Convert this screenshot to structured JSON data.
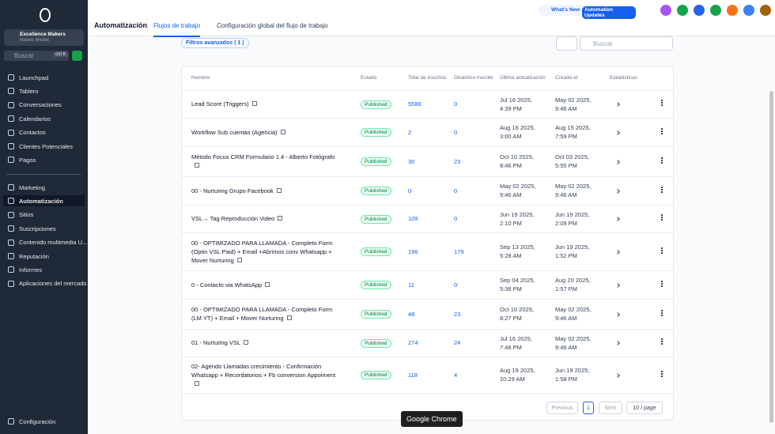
{
  "sidebar": {
    "company": "Excellence Makers",
    "location": "Madrid, Madrid",
    "search": "Buscar",
    "shortcut": "ctrl K",
    "nav": [
      "Launchpad",
      "Tablero",
      "Conversaciones",
      "Calendarios",
      "Contactos",
      "Clientes Potenciales",
      "Pagos"
    ],
    "nav2": [
      "Marketing",
      "Automatización",
      "Sitios",
      "Suscripciones",
      "Contenido multimedia U...",
      "Reputación",
      "Informes",
      "Aplicaciones del mercado"
    ],
    "settings": "Configuración"
  },
  "header": {
    "title": "Automatización",
    "tabs": [
      "Flujos de trabajo",
      "Configuración global del flujo de trabajo"
    ],
    "whats_new": "What's New",
    "updates": "Automation Updates"
  },
  "toolbar": {
    "filter": "Filtros avanzados ( 1 )",
    "search": "Buscar"
  },
  "table": {
    "columns": [
      "Nombre",
      "Estado",
      "Total de inscritos",
      "Dinámico inscrito",
      "Última actualización",
      "Creado el",
      "Estadísticas"
    ],
    "rows": [
      [
        "Lead Score (Triggers)",
        "Published",
        5588,
        0,
        "Jul 16 2025, 4:39 PM",
        "May 02 2025, 9:46 AM"
      ],
      [
        "Workflow Sub cuentas (Agencia)",
        "Published",
        2,
        0,
        "Aug 16 2025, 3:00 AM",
        "Aug 15 2025, 7:59 PM"
      ],
      [
        "Método Focus CRM Formulario 1.4 - Alberto Fotógrafo",
        "Published",
        30,
        23,
        "Oct 10 2025, 8:46 PM",
        "Oct 03 2025, 5:55 PM"
      ],
      [
        "00 - Nurturing Grupo Facebook",
        "Published",
        0,
        0,
        "May 02 2025, 9:46 AM",
        "May 02 2025, 9:46 AM"
      ],
      [
        "VSL→ Tag Reproducción Video",
        "Published",
        109,
        0,
        "Jun 19 2025, 2:10 PM",
        "Jun 19 2025, 2:09 PM"
      ],
      [
        "00 - OPTIMIZADO PARA LLAMADA - Completo Form (Optin VSL Paid) + Email +Abrimos conv Whatsapp + Mover Nurturing",
        "Published",
        196,
        179,
        "Sep 13 2025, 5:28 AM",
        "Jun 19 2025, 1:52 PM"
      ],
      [
        "0 - Contacto via WhatsApp",
        "Published",
        11,
        0,
        "Sep 04 2025, 5:38 PM",
        "Aug 20 2025, 1:57 PM"
      ],
      [
        "00 - OPTIMIZADO PARA LLAMADA -  Completo Form (LM YT) + Email  + Mover Nurturing",
        "Published",
        48,
        23,
        "Oct 10 2025, 8:27 PM",
        "May 02 2025, 9:46 AM"
      ],
      [
        "01 - Nurturing VSL",
        "Published",
        274,
        24,
        "Jul 16 2025, 7:48 PM",
        "May 02 2025, 9:46 AM"
      ],
      [
        "02- Agendo Llamadas crecimiento - Confirmación Whatsapp + Recordatorios + Fb conversion Appoiment",
        "Published",
        118,
        4,
        "Aug 19 2025, 10:29 AM",
        "Jun 19 2025, 1:58 PM"
      ]
    ]
  },
  "pagination": {
    "previous": "Previous",
    "page": "1",
    "next": "Next",
    "size": "10 / page"
  },
  "tooltip": "Google Chrome"
}
